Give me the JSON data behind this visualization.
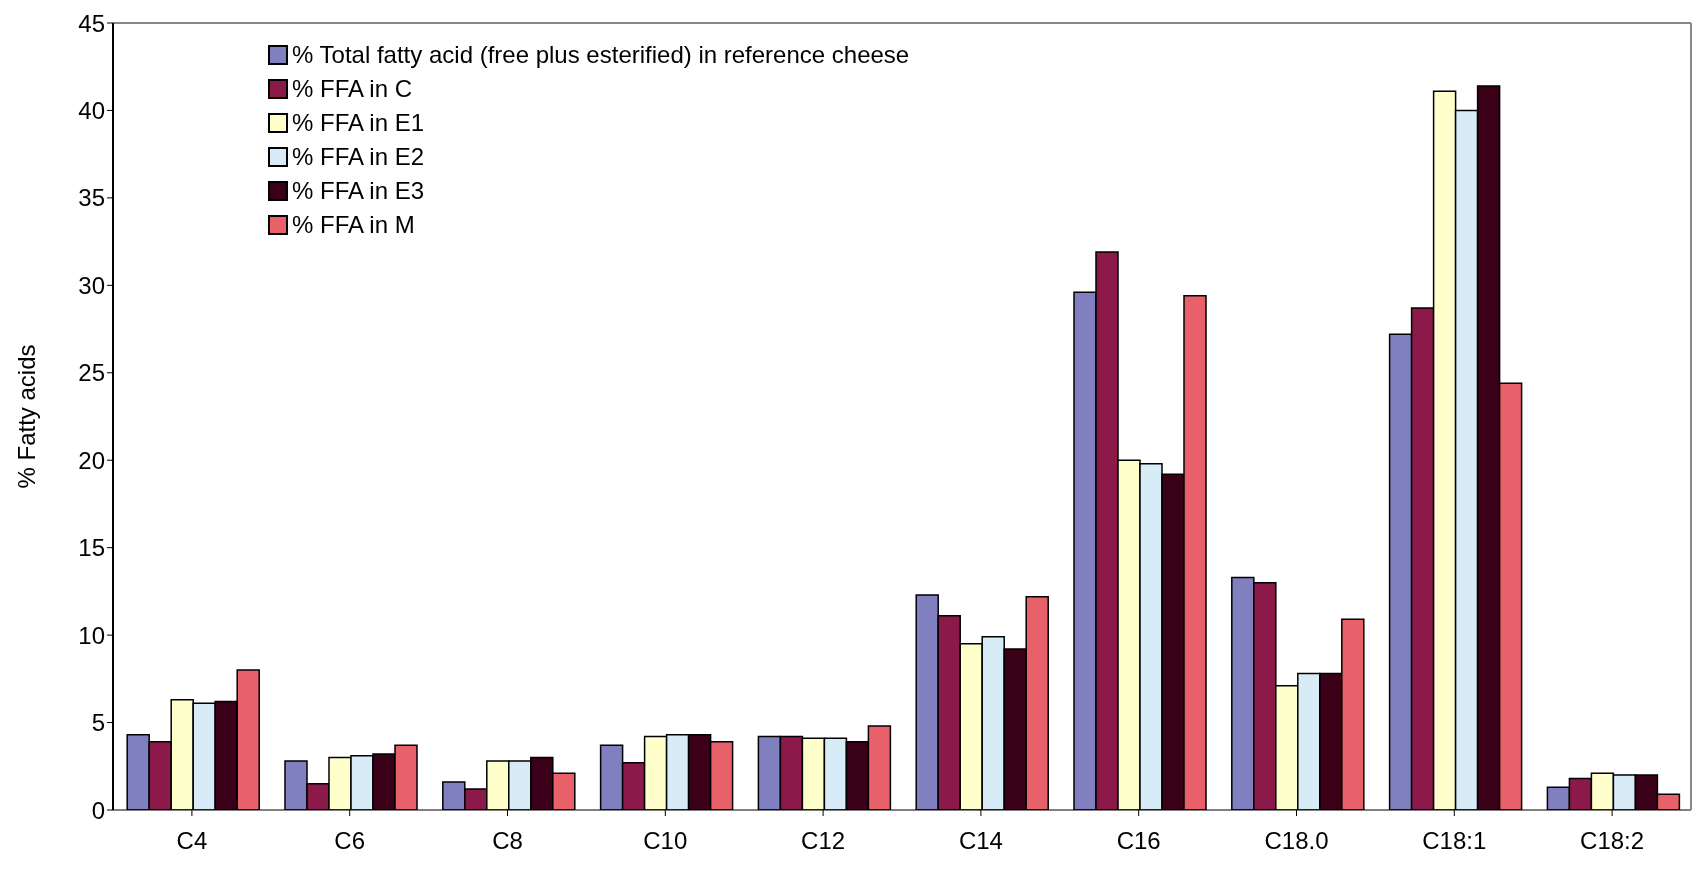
{
  "chart_data": {
    "type": "bar",
    "ylabel": "% Fatty acids",
    "categories": [
      "C4",
      "C6",
      "C8",
      "C10",
      "C12",
      "C14",
      "C16",
      "C18.0",
      "C18:1",
      "C18:2"
    ],
    "series": [
      {
        "name": "% Total fatty acid (free plus esterified) in reference cheese",
        "color": "#8080c0",
        "values": [
          4.3,
          2.8,
          1.6,
          3.7,
          4.2,
          12.3,
          29.6,
          13.3,
          27.2,
          1.3
        ]
      },
      {
        "name": "% FFA in C",
        "color": "#8b1a4a",
        "values": [
          3.9,
          1.5,
          1.2,
          2.7,
          4.2,
          11.1,
          31.9,
          13.0,
          28.7,
          1.8
        ]
      },
      {
        "name": "% FFA in E1",
        "color": "#ffffcc",
        "values": [
          6.3,
          3.0,
          2.8,
          4.2,
          4.1,
          9.5,
          20.0,
          7.1,
          41.1,
          2.1
        ]
      },
      {
        "name": "% FFA in E2",
        "color": "#d8ecf8",
        "values": [
          6.1,
          3.1,
          2.8,
          4.3,
          4.1,
          9.9,
          19.8,
          7.8,
          40.0,
          2.0
        ]
      },
      {
        "name": "% FFA in E3",
        "color": "#3a0018",
        "values": [
          6.2,
          3.2,
          3.0,
          4.3,
          3.9,
          9.2,
          19.2,
          7.8,
          41.4,
          2.0
        ]
      },
      {
        "name": "% FFA in M",
        "color": "#e8606a",
        "values": [
          8.0,
          3.7,
          2.1,
          3.9,
          4.8,
          12.2,
          29.4,
          10.9,
          24.4,
          0.9
        ]
      }
    ],
    "ylim": [
      0,
      45
    ],
    "yticks": [
      0,
      5,
      10,
      15,
      20,
      25,
      30,
      35,
      40,
      45
    ],
    "grid": false,
    "legend": "top left"
  }
}
